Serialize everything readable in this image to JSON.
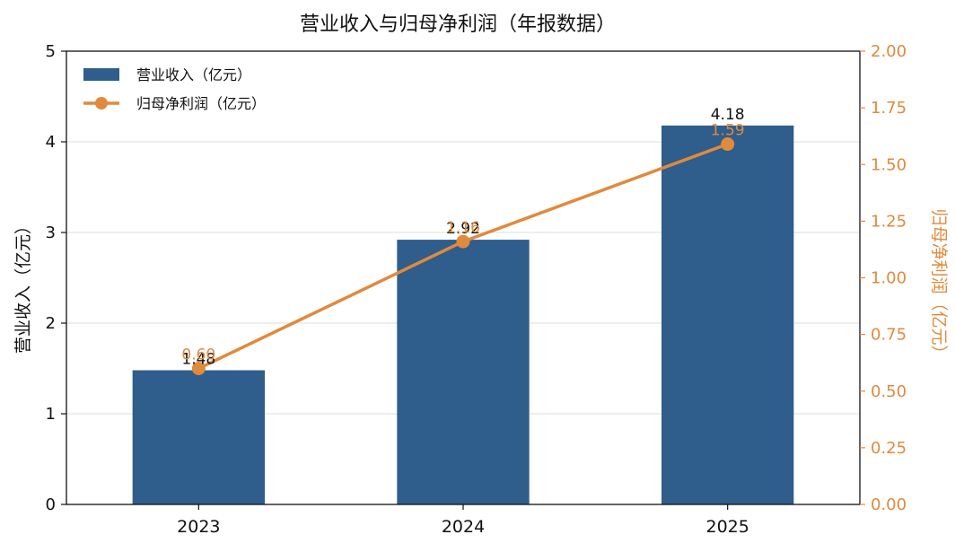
{
  "chart_data": {
    "type": "bar+line",
    "title": "营业收入与归母净利润（年报数据）",
    "categories": [
      "2023",
      "2024",
      "2025"
    ],
    "series": [
      {
        "name": "营业收入（亿元）",
        "type": "bar",
        "axis": "left",
        "values": [
          1.48,
          2.92,
          4.18
        ],
        "labels": [
          "1.48",
          "2.92",
          "4.18"
        ],
        "color": "#2f5d8c"
      },
      {
        "name": "归母净利润（亿元）",
        "type": "line",
        "axis": "right",
        "values": [
          0.6,
          1.16,
          1.59
        ],
        "labels": [
          "0.60",
          "1.16",
          "1.59"
        ],
        "color": "#e08a3c"
      }
    ],
    "ylabel_left": "营业收入（亿元）",
    "ylabel_right": "归母净利润（亿元）",
    "ylim_left": [
      0,
      5
    ],
    "yticks_left": [
      "0",
      "1",
      "2",
      "3",
      "4",
      "5"
    ],
    "ylim_right": [
      0,
      2
    ],
    "yticks_right": [
      "0.00",
      "0.25",
      "0.50",
      "0.75",
      "1.00",
      "1.25",
      "1.50",
      "1.75",
      "2.00"
    ],
    "grid": "horizontal",
    "legend_position": "top-left"
  }
}
